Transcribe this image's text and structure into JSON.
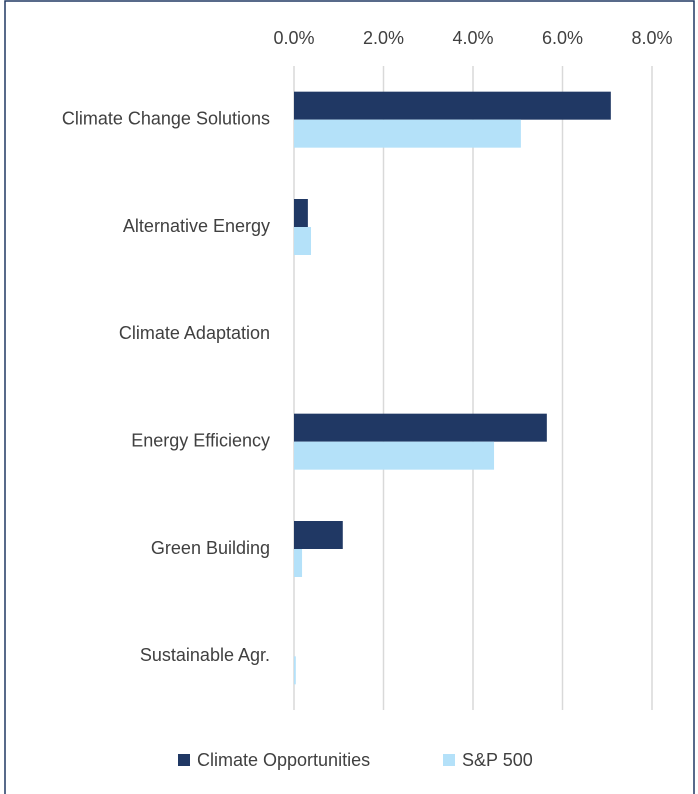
{
  "chart_data": {
    "type": "barh",
    "categories": [
      "Climate Change Solutions",
      "Alternative Energy",
      "Climate Adaptation",
      "Energy Efficiency",
      "Green Building",
      "Sustainable Agr."
    ],
    "series": [
      {
        "name": "Climate Opportunities",
        "color": "#203864",
        "values": [
          7.08,
          0.31,
          0,
          5.65,
          1.09,
          0
        ]
      },
      {
        "name": "S&P 500",
        "color": "#b4e1f9",
        "values": [
          5.07,
          0.38,
          0,
          4.47,
          0.18,
          0.04
        ]
      }
    ],
    "xlim": [
      0,
      8
    ],
    "xticks": [
      {
        "value": 0,
        "label": "0.0%"
      },
      {
        "value": 2,
        "label": "2.0%"
      },
      {
        "value": 4,
        "label": "4.0%"
      },
      {
        "value": 6,
        "label": "6.0%"
      },
      {
        "value": 8,
        "label": "8.0%"
      }
    ],
    "grid": true,
    "legend": "bottom"
  }
}
